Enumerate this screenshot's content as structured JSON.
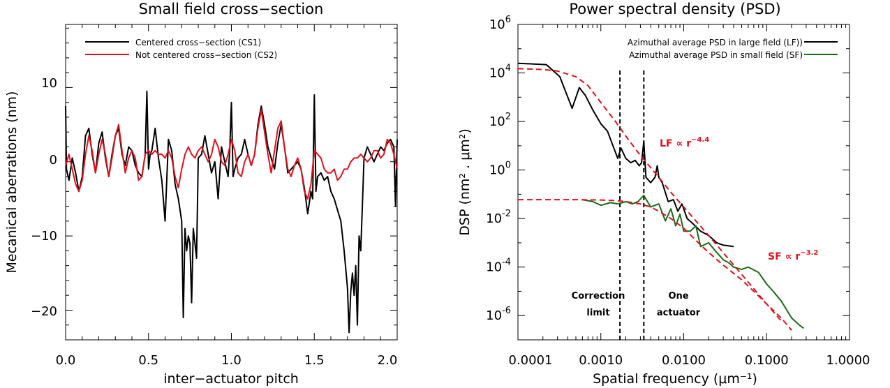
{
  "chart_data": [
    {
      "type": "line",
      "title": "Small field cross−section",
      "xlabel": "inter−actuator pitch",
      "ylabel": "Mecanical aberrations (nm)",
      "xlim": [
        0.0,
        2.0
      ],
      "ylim": [
        -24,
        18.5
      ],
      "xticks": [
        0.0,
        0.5,
        1.0,
        1.5,
        2.0
      ],
      "xtick_labels": [
        "0.0",
        "0.5",
        "1.0",
        "1.5",
        "2.0"
      ],
      "yticks": [
        10,
        0,
        -10,
        -20
      ],
      "ytick_labels": [
        "10",
        "0",
        "−10",
        "−20"
      ],
      "legend_position": "top-left",
      "series": [
        {
          "name": "Centered cross−section (CS1)",
          "color": "#000000",
          "x": [
            0.0,
            0.005,
            0.02,
            0.04,
            0.06,
            0.08,
            0.1,
            0.12,
            0.14,
            0.16,
            0.18,
            0.2,
            0.22,
            0.24,
            0.26,
            0.28,
            0.3,
            0.32,
            0.34,
            0.36,
            0.38,
            0.4,
            0.42,
            0.44,
            0.46,
            0.48,
            0.49,
            0.5,
            0.51,
            0.52,
            0.54,
            0.56,
            0.58,
            0.6,
            0.62,
            0.64,
            0.66,
            0.68,
            0.7,
            0.71,
            0.72,
            0.73,
            0.74,
            0.75,
            0.76,
            0.77,
            0.78,
            0.79,
            0.8,
            0.82,
            0.84,
            0.86,
            0.88,
            0.9,
            0.92,
            0.94,
            0.96,
            0.98,
            0.99,
            1.0,
            1.01,
            1.02,
            1.04,
            1.06,
            1.08,
            1.1,
            1.12,
            1.14,
            1.16,
            1.18,
            1.2,
            1.22,
            1.24,
            1.26,
            1.28,
            1.3,
            1.32,
            1.34,
            1.36,
            1.38,
            1.4,
            1.42,
            1.44,
            1.46,
            1.48,
            1.49,
            1.5,
            1.51,
            1.52,
            1.54,
            1.56,
            1.58,
            1.6,
            1.62,
            1.64,
            1.66,
            1.68,
            1.7,
            1.71,
            1.72,
            1.73,
            1.74,
            1.75,
            1.76,
            1.77,
            1.78,
            1.79,
            1.8,
            1.82,
            1.84,
            1.86,
            1.88,
            1.9,
            1.92,
            1.94,
            1.96,
            1.98,
            1.99,
            2.0
          ],
          "y": [
            7.5,
            -1.0,
            -2.5,
            0.5,
            -1.5,
            -4.0,
            -2.0,
            3.5,
            4.5,
            1.0,
            -1.5,
            2.5,
            4.0,
            0.5,
            -2.0,
            1.0,
            3.5,
            4.5,
            1.0,
            -0.5,
            2.0,
            1.5,
            -0.5,
            -1.5,
            -2.0,
            1.0,
            9.5,
            -1.0,
            1.0,
            1.5,
            4.5,
            0.5,
            -2.5,
            -8.0,
            3.0,
            1.5,
            -3.0,
            -5.0,
            -8.0,
            -21.0,
            -9.0,
            -12.0,
            -10.0,
            -11.0,
            -19.0,
            -9.0,
            -11.0,
            -13.0,
            0.5,
            1.0,
            3.5,
            1.0,
            -1.5,
            0.0,
            -5.0,
            2.0,
            0.0,
            -2.0,
            1.5,
            8.0,
            -2.0,
            -1.0,
            0.5,
            1.0,
            3.0,
            1.0,
            -0.5,
            1.0,
            5.0,
            7.5,
            5.0,
            2.0,
            0.5,
            -1.0,
            2.5,
            5.0,
            2.0,
            -1.5,
            -1.0,
            -0.5,
            0.0,
            -1.0,
            -3.5,
            -7.0,
            -4.0,
            -5.0,
            9.0,
            -4.0,
            -2.0,
            -1.5,
            -2.5,
            -2.0,
            -4.0,
            -5.0,
            -6.5,
            -8.0,
            -12.0,
            -17.0,
            -23.0,
            -17.5,
            -15.0,
            -18.0,
            -14.0,
            -22.0,
            -10.0,
            -12.0,
            -6.0,
            0.5,
            2.0,
            1.0,
            0.0,
            1.0,
            2.0,
            1.5,
            2.5,
            3.0,
            2.0,
            -6.0,
            3.0
          ]
        },
        {
          "name": "Not centered cross−section (CS2)",
          "color": "#e0101c",
          "x": [
            0.0,
            0.02,
            0.04,
            0.06,
            0.08,
            0.1,
            0.12,
            0.14,
            0.16,
            0.18,
            0.2,
            0.22,
            0.24,
            0.26,
            0.28,
            0.3,
            0.32,
            0.34,
            0.36,
            0.38,
            0.4,
            0.42,
            0.44,
            0.46,
            0.48,
            0.5,
            0.52,
            0.54,
            0.56,
            0.58,
            0.6,
            0.62,
            0.64,
            0.66,
            0.68,
            0.7,
            0.72,
            0.74,
            0.76,
            0.78,
            0.8,
            0.82,
            0.84,
            0.86,
            0.88,
            0.9,
            0.92,
            0.94,
            0.96,
            0.98,
            1.0,
            1.02,
            1.04,
            1.06,
            1.08,
            1.1,
            1.12,
            1.14,
            1.16,
            1.18,
            1.2,
            1.22,
            1.24,
            1.26,
            1.28,
            1.3,
            1.32,
            1.34,
            1.36,
            1.38,
            1.4,
            1.42,
            1.44,
            1.46,
            1.48,
            1.5,
            1.52,
            1.54,
            1.56,
            1.58,
            1.6,
            1.62,
            1.64,
            1.66,
            1.68,
            1.7,
            1.72,
            1.74,
            1.76,
            1.78,
            1.8,
            1.82,
            1.84,
            1.86,
            1.88,
            1.9,
            1.92,
            1.94,
            1.96,
            1.98,
            2.0
          ],
          "y": [
            -0.5,
            1.0,
            -1.0,
            -3.0,
            -4.0,
            -2.5,
            1.0,
            3.5,
            1.5,
            -1.5,
            1.0,
            3.0,
            1.0,
            -2.0,
            0.5,
            3.5,
            5.0,
            1.5,
            -1.5,
            0.5,
            1.5,
            0.5,
            -2.5,
            -2.0,
            1.0,
            1.5,
            1.0,
            1.5,
            1.0,
            1.0,
            0.5,
            1.5,
            0.5,
            -2.0,
            -3.5,
            -1.0,
            1.0,
            2.0,
            1.0,
            0.5,
            1.5,
            2.0,
            1.0,
            0.0,
            1.0,
            3.0,
            2.0,
            0.0,
            -0.5,
            1.0,
            3.0,
            1.5,
            -1.5,
            -2.0,
            0.0,
            1.0,
            -0.5,
            1.0,
            4.5,
            7.0,
            4.0,
            1.0,
            -1.5,
            1.5,
            4.5,
            5.5,
            2.0,
            -1.0,
            -2.0,
            -0.5,
            0.5,
            -1.0,
            -4.0,
            -5.0,
            -3.0,
            1.5,
            1.0,
            0.5,
            -1.0,
            -1.5,
            -1.5,
            -1.0,
            -2.5,
            -2.0,
            -1.0,
            -1.0,
            0.0,
            0.5,
            0.5,
            1.0,
            0.5,
            0.0,
            0.5,
            1.5,
            1.5,
            0.5,
            1.0,
            3.0,
            2.5,
            1.0,
            -1.0
          ]
        }
      ]
    },
    {
      "type": "line",
      "title": "Power spectral density (PSD)",
      "xlabel": "Spatial frequency (μm⁻¹)",
      "ylabel": "DSP (nm² . μm²)",
      "xscale": "log",
      "yscale": "log",
      "xlim": [
        0.0001,
        1.0
      ],
      "ylim": [
        1e-07,
        1000000.0
      ],
      "xticks": [
        0.0001,
        0.001,
        0.01,
        0.1,
        1.0
      ],
      "xtick_labels": [
        "0.0001",
        "0.0010",
        "0.0100",
        "0.1000",
        "1.0000"
      ],
      "yticks": [
        1000000.0,
        10000.0,
        100.0,
        1.0,
        0.01,
        0.0001,
        1e-06
      ],
      "ytick_labels": [
        [
          "10",
          "6"
        ],
        [
          "10",
          "4"
        ],
        [
          "10",
          "2"
        ],
        [
          "10",
          "0"
        ],
        [
          "10",
          "-2"
        ],
        [
          "10",
          "-4"
        ],
        [
          "10",
          "-6"
        ]
      ],
      "legend_position": "top-right",
      "series": [
        {
          "name": "Azimuthal average PSD in large field (LF))",
          "color": "#000000",
          "x": [
            0.0001,
            0.00022,
            0.00032,
            0.00045,
            0.00055,
            0.00065,
            0.0008,
            0.001,
            0.0012,
            0.0014,
            0.0016,
            0.00175,
            0.002,
            0.0023,
            0.0026,
            0.0029,
            0.0031,
            0.0033,
            0.0035,
            0.004,
            0.0045,
            0.0048,
            0.005,
            0.0055,
            0.0065,
            0.0075,
            0.0085,
            0.0095,
            0.011,
            0.013,
            0.016,
            0.02,
            0.025,
            0.03,
            0.04
          ],
          "y": [
            25000,
            22000,
            7000,
            350,
            2500,
            1200,
            300,
            80,
            40,
            10,
            3,
            8,
            3,
            2,
            2.5,
            1.5,
            2,
            15,
            0.5,
            0.3,
            0.5,
            1.5,
            0.5,
            0.3,
            0.05,
            0.06,
            0.02,
            0.04,
            0.01,
            0.006,
            0.003,
            0.002,
            0.001,
            0.0008,
            0.0007
          ]
        },
        {
          "name": "Azimuthal average PSD in small field (SF)",
          "color": "#1a6a14",
          "x": [
            0.0006,
            0.0008,
            0.001,
            0.0013,
            0.0016,
            0.002,
            0.0024,
            0.0028,
            0.0033,
            0.004,
            0.005,
            0.006,
            0.007,
            0.008,
            0.009,
            0.01,
            0.012,
            0.014,
            0.016,
            0.02,
            0.025,
            0.03,
            0.035,
            0.04,
            0.05,
            0.06,
            0.08,
            0.1,
            0.12,
            0.15,
            0.2,
            0.25,
            0.28
          ],
          "y": [
            0.06,
            0.05,
            0.035,
            0.045,
            0.04,
            0.05,
            0.04,
            0.05,
            0.09,
            0.03,
            0.04,
            0.008,
            0.025,
            0.005,
            0.015,
            0.003,
            0.003,
            0.005,
            0.0007,
            0.001,
            0.0004,
            0.0002,
            0.00015,
            0.0001,
            8e-05,
            0.0001,
            6e-05,
            2e-05,
            1e-05,
            4e-06,
            8e-07,
            4e-07,
            3e-07
          ]
        },
        {
          "name": "",
          "style": "dashed",
          "color": "#e0101c",
          "x": [
            0.0001,
            0.0002,
            0.0003,
            0.0005,
            0.0007,
            0.001,
            0.0015,
            0.002,
            0.003,
            0.005,
            0.007,
            0.01,
            0.02,
            0.05,
            0.1,
            0.15
          ],
          "y": [
            15000,
            14000,
            12000,
            7000,
            3000,
            600,
            100,
            25,
            4,
            0.5,
            0.12,
            0.03,
            0.002,
            5e-05,
            3e-06,
            6e-07
          ]
        },
        {
          "name": "",
          "style": "dashed",
          "color": "#e0101c",
          "x": [
            0.0001,
            0.0005,
            0.001,
            0.0015,
            0.002,
            0.003,
            0.004,
            0.005,
            0.007,
            0.01,
            0.015,
            0.02,
            0.03,
            0.05,
            0.07,
            0.1,
            0.15,
            0.2
          ],
          "y": [
            0.06,
            0.06,
            0.058,
            0.055,
            0.05,
            0.04,
            0.03,
            0.02,
            0.01,
            0.004,
            0.001,
            0.0004,
            0.00012,
            3e-05,
            1e-05,
            3e-06,
            8e-07,
            2.5e-07
          ]
        }
      ],
      "vlines": [
        0.0017,
        0.0033
      ],
      "annotations": {
        "lf_prefix": "LF ∝ r",
        "lf_exp": "−4.4",
        "sf_prefix": "SF ∝ r",
        "sf_exp": "−3.2",
        "correction_line1": "Correction",
        "correction_line2": "limit",
        "actuator_line1": "One",
        "actuator_line2": "actuator"
      }
    }
  ]
}
